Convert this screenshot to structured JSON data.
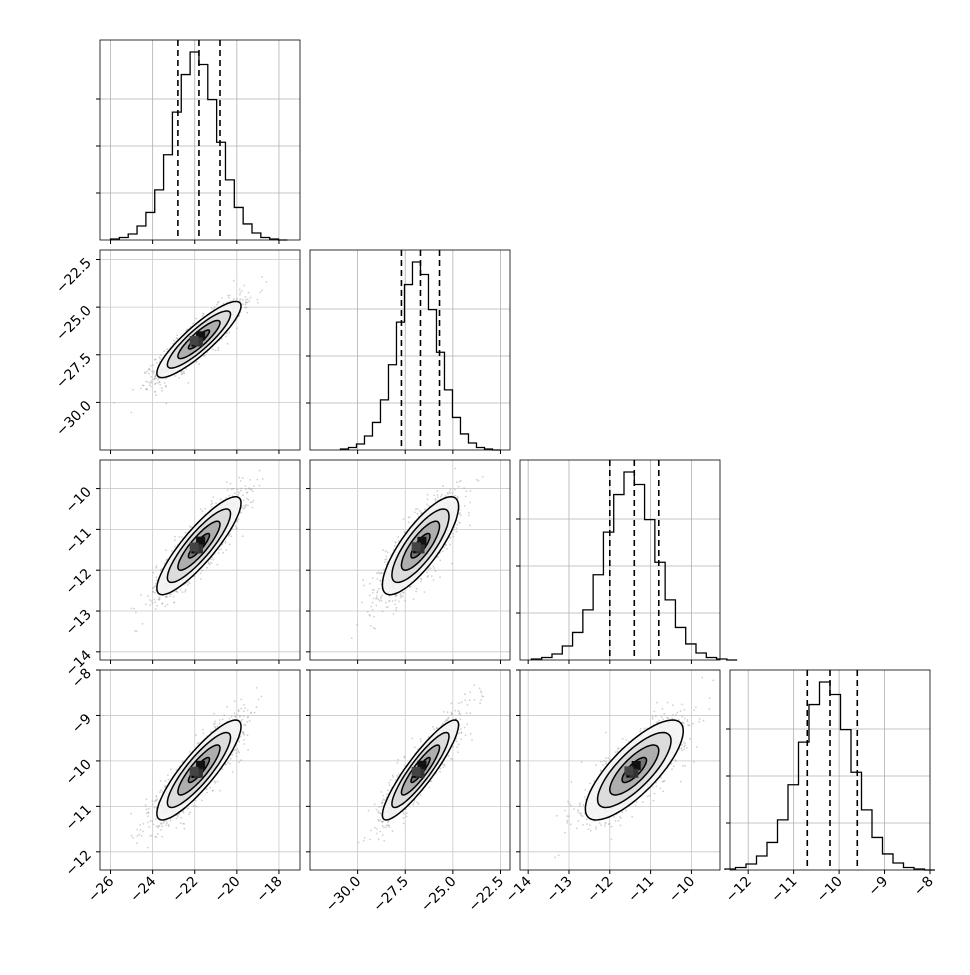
{
  "chart_data": {
    "type": "corner",
    "n_params": 4,
    "params": [
      {
        "range": [
          -26.5,
          -17.0
        ],
        "quantiles": [
          -22.8,
          -21.8,
          -20.8
        ],
        "ticks": [
          -26,
          -24,
          -22,
          -20,
          -18
        ],
        "tick_labels": [
          "−26",
          "−24",
          "−22",
          "−20",
          "−18"
        ],
        "hist_max_tick": 0.125,
        "hist_yticks": [
          0.0,
          0.03125,
          0.0625,
          0.09375
        ]
      },
      {
        "range": [
          -32.5,
          -22.0
        ],
        "quantiles": [
          -27.7,
          -26.7,
          -25.7
        ],
        "ticks": [
          -30.0,
          -27.5,
          -25.0,
          -22.5
        ],
        "tick_labels": [
          "−30.0",
          "−27.5",
          "−25.0",
          "−22.5"
        ],
        "hist_max_tick": 0.125,
        "hist_yticks": [
          0.0,
          0.03125,
          0.0625,
          0.09375
        ]
      },
      {
        "range": [
          -14.2,
          -9.3
        ],
        "quantiles": [
          -12.0,
          -11.4,
          -10.8
        ],
        "ticks": [
          -14,
          -13,
          -12,
          -11,
          -10
        ],
        "tick_labels": [
          "−14",
          "−13",
          "−12",
          "−11",
          "−10"
        ],
        "hist_max_tick": 0.125,
        "hist_yticks": [
          0.0,
          0.03125,
          0.0625,
          0.09375
        ]
      },
      {
        "range": [
          -12.4,
          -8.0
        ],
        "quantiles": [
          -10.7,
          -10.2,
          -9.6
        ],
        "ticks": [
          -12,
          -11,
          -10,
          -9,
          -8
        ],
        "tick_labels": [
          "−12",
          "−11",
          "−10",
          "−9",
          "−8"
        ],
        "hist_max_tick": 0.125,
        "hist_yticks": [
          0.0,
          0.03125,
          0.0625,
          0.09375
        ]
      }
    ],
    "hist_counts": [
      2,
      5,
      12,
      28,
      55,
      100,
      170,
      255,
      330,
      375,
      350,
      280,
      195,
      120,
      65,
      32,
      14,
      5,
      2,
      0
    ],
    "correlations": {
      "1-0": 0.88,
      "2-0": 0.87,
      "3-0": 0.87,
      "2-1": 0.8,
      "3-1": 0.9,
      "3-2": 0.78
    },
    "contour_sigmas": [
      0.5,
      1.0,
      1.5,
      2.0
    ],
    "grid": true,
    "xlabel": "",
    "ylabel": ""
  }
}
